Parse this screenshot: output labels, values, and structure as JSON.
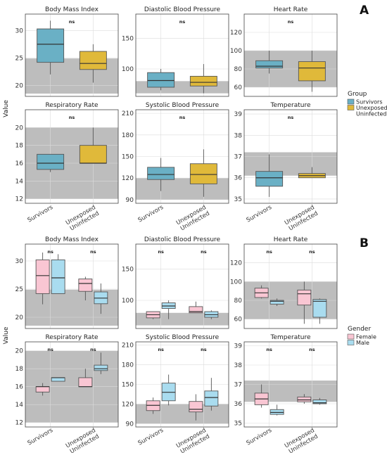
{
  "panels": [
    {
      "letter": "A",
      "legend": {
        "title": "Group",
        "items": [
          {
            "label": "Survivors",
            "color": "#6ab0c5"
          },
          {
            "label": "Unexposed\nUninfected",
            "color": "#e0b93a"
          }
        ]
      }
    },
    {
      "letter": "B",
      "legend": {
        "title": "Gender",
        "items": [
          {
            "label": "Female",
            "color": "#f9c6d3"
          },
          {
            "label": "Male",
            "color": "#a9dcef"
          }
        ]
      }
    }
  ],
  "ylabel": "Value",
  "categories": [
    "Survivors",
    "Unexposed\nUninfected"
  ],
  "chart_data": [
    {
      "type": "boxplot",
      "panel": "A",
      "group_by": "Group",
      "grid": true,
      "shading": "gray band marks normal reference range",
      "subplots": [
        {
          "title": "Body Mass Index",
          "ylim": [
            18,
            33
          ],
          "yticks": [
            20,
            25,
            30
          ],
          "ref_range": [
            18.5,
            24.9
          ],
          "boxes": [
            {
              "category": "Survivors",
              "series": "Survivors",
              "min": 22,
              "q1": 24.2,
              "median": 27.5,
              "q3": 30.3,
              "max": 31.8
            },
            {
              "category": "Unexposed\nUninfected",
              "series": "Unexposed\nUninfected",
              "min": 20.5,
              "q1": 22.9,
              "median": 24,
              "q3": 26.2,
              "max": 27.5
            }
          ],
          "annotations": [
            "ns"
          ]
        },
        {
          "title": "Diastolic Blood Pressure",
          "ylim": [
            55,
            190
          ],
          "yticks": [
            100,
            150
          ],
          "ref_range": [
            60,
            80
          ],
          "boxes": [
            {
              "category": "Survivors",
              "series": "Survivors",
              "min": 65,
              "q1": 70,
              "median": 81,
              "q3": 94,
              "max": 100
            },
            {
              "category": "Unexposed\nUninfected",
              "series": "Unexposed\nUninfected",
              "min": 60,
              "q1": 72,
              "median": 78,
              "q3": 88,
              "max": 108
            }
          ],
          "annotations": [
            "ns"
          ]
        },
        {
          "title": "Heart Rate",
          "ylim": [
            50,
            140
          ],
          "yticks": [
            60,
            80,
            100,
            120
          ],
          "ref_range": [
            60,
            100
          ],
          "boxes": [
            {
              "category": "Survivors",
              "series": "Survivors",
              "min": 75,
              "q1": 81,
              "median": 83,
              "q3": 89,
              "max": 100
            },
            {
              "category": "Unexposed\nUninfected",
              "series": "Unexposed\nUninfected",
              "min": 55,
              "q1": 67,
              "median": 81,
              "q3": 88,
              "max": 100
            }
          ],
          "annotations": [
            "ns"
          ]
        },
        {
          "title": "Respiratory Rate",
          "ylim": [
            11.5,
            22
          ],
          "yticks": [
            12,
            14,
            16,
            18,
            20
          ],
          "ref_range": [
            12,
            20
          ],
          "boxes": [
            {
              "category": "Survivors",
              "series": "Survivors",
              "min": 15,
              "q1": 15.3,
              "median": 16,
              "q3": 17,
              "max": 17
            },
            {
              "category": "Unexposed\nUninfected",
              "series": "Unexposed\nUninfected",
              "min": 16,
              "q1": 16,
              "median": 16,
              "q3": 18,
              "max": 20
            }
          ],
          "annotations": [
            "ns"
          ]
        },
        {
          "title": "Systolic Blood Pressure",
          "ylim": [
            85,
            215
          ],
          "yticks": [
            90,
            120,
            150,
            180,
            210
          ],
          "ref_range": [
            90,
            120
          ],
          "boxes": [
            {
              "category": "Survivors",
              "series": "Survivors",
              "min": 102,
              "q1": 118,
              "median": 125,
              "q3": 135,
              "max": 148
            },
            {
              "category": "Unexposed\nUninfected",
              "series": "Unexposed\nUninfected",
              "min": 94,
              "q1": 112,
              "median": 125,
              "q3": 140,
              "max": 160
            }
          ],
          "annotations": [
            "ns"
          ]
        },
        {
          "title": "Temperature",
          "ylim": [
            34.8,
            39.2
          ],
          "yticks": [
            35,
            36,
            37,
            38,
            39
          ],
          "ref_range": [
            36.1,
            37.2
          ],
          "boxes": [
            {
              "category": "Survivors",
              "series": "Survivors",
              "min": 35.1,
              "q1": 35.6,
              "median": 36,
              "q3": 36.3,
              "max": 37.1
            },
            {
              "category": "Unexposed\nUninfected",
              "series": "Unexposed\nUninfected",
              "min": 36,
              "q1": 36,
              "median": 36.1,
              "q3": 36.2,
              "max": 36.5
            }
          ],
          "annotations": [
            "ns"
          ]
        }
      ]
    },
    {
      "type": "boxplot",
      "panel": "B",
      "group_by": "Gender",
      "grid": true,
      "shading": "gray band marks normal reference range",
      "subplots": [
        {
          "title": "Body Mass Index",
          "ylim": [
            18,
            33
          ],
          "yticks": [
            20,
            25,
            30
          ],
          "ref_range": [
            18.5,
            24.9
          ],
          "boxes": [
            {
              "category": "Survivors",
              "series": "Female",
              "min": 22.3,
              "q1": 24.2,
              "median": 27.4,
              "q3": 30.2,
              "max": 31.5
            },
            {
              "category": "Survivors",
              "series": "Male",
              "min": 24.2,
              "q1": 24.2,
              "median": 27,
              "q3": 30.2,
              "max": 31.2
            },
            {
              "category": "Unexposed\nUninfected",
              "series": "Female",
              "min": 23,
              "q1": 24.6,
              "median": 26,
              "q3": 26.8,
              "max": 27.2
            },
            {
              "category": "Unexposed\nUninfected",
              "series": "Male",
              "min": 20.6,
              "q1": 22.4,
              "median": 23.4,
              "q3": 24.5,
              "max": 26
            }
          ],
          "annotations": [
            "ns",
            "ns"
          ]
        },
        {
          "title": "Diastolic Blood Pressure",
          "ylim": [
            55,
            190
          ],
          "yticks": [
            100,
            150
          ],
          "ref_range": [
            60,
            80
          ],
          "boxes": [
            {
              "category": "Survivors",
              "series": "Female",
              "min": 70,
              "q1": 72,
              "median": 77,
              "q3": 82,
              "max": 82
            },
            {
              "category": "Survivors",
              "series": "Male",
              "min": 70,
              "q1": 87,
              "median": 91,
              "q3": 96,
              "max": 100
            },
            {
              "category": "Unexposed\nUninfected",
              "series": "Female",
              "min": 80,
              "q1": 80,
              "median": 82,
              "q3": 90,
              "max": 98
            },
            {
              "category": "Unexposed\nUninfected",
              "series": "Male",
              "min": 70,
              "q1": 73,
              "median": 77,
              "q3": 82,
              "max": 84
            }
          ],
          "annotations": [
            "ns",
            "ns"
          ]
        },
        {
          "title": "Heart Rate",
          "ylim": [
            50,
            140
          ],
          "yticks": [
            60,
            80,
            100,
            120
          ],
          "ref_range": [
            60,
            100
          ],
          "boxes": [
            {
              "category": "Survivors",
              "series": "Female",
              "min": 82,
              "q1": 83,
              "median": 88,
              "q3": 93,
              "max": 96
            },
            {
              "category": "Survivors",
              "series": "Male",
              "min": 74,
              "q1": 76,
              "median": 79,
              "q3": 80,
              "max": 82
            },
            {
              "category": "Unexposed\nUninfected",
              "series": "Female",
              "min": 55,
              "q1": 75,
              "median": 87,
              "q3": 91,
              "max": 100
            },
            {
              "category": "Unexposed\nUninfected",
              "series": "Male",
              "min": 55,
              "q1": 62,
              "median": 79,
              "q3": 81,
              "max": 82
            }
          ],
          "annotations": [
            "ns",
            "ns"
          ]
        },
        {
          "title": "Respiratory Rate",
          "ylim": [
            11.5,
            21
          ],
          "yticks": [
            12,
            14,
            16,
            18,
            20
          ],
          "ref_range": [
            12,
            20
          ],
          "boxes": [
            {
              "category": "Survivors",
              "series": "Female",
              "min": 15,
              "q1": 15.4,
              "median": 16,
              "q3": 16,
              "max": 16.4
            },
            {
              "category": "Survivors",
              "series": "Male",
              "min": 16.6,
              "q1": 16.6,
              "median": 17,
              "q3": 17,
              "max": 17
            },
            {
              "category": "Unexposed\nUninfected",
              "series": "Female",
              "min": 16,
              "q1": 16,
              "median": 16,
              "q3": 17,
              "max": 18
            },
            {
              "category": "Unexposed\nUninfected",
              "series": "Male",
              "min": 17.4,
              "q1": 17.8,
              "median": 18,
              "q3": 18.4,
              "max": 19.8
            }
          ],
          "annotations": [
            "ns",
            "ns"
          ]
        },
        {
          "title": "Systolic Blood Pressure",
          "ylim": [
            85,
            215
          ],
          "yticks": [
            90,
            120,
            150,
            180,
            210
          ],
          "ref_range": [
            90,
            120
          ],
          "boxes": [
            {
              "category": "Survivors",
              "series": "Female",
              "min": 105,
              "q1": 110,
              "median": 118,
              "q3": 125,
              "max": 130
            },
            {
              "category": "Survivors",
              "series": "Male",
              "min": 118,
              "q1": 125,
              "median": 138,
              "q3": 152,
              "max": 165
            },
            {
              "category": "Unexposed\nUninfected",
              "series": "Female",
              "min": 95,
              "q1": 108,
              "median": 112,
              "q3": 124,
              "max": 135
            },
            {
              "category": "Unexposed\nUninfected",
              "series": "Male",
              "min": 110,
              "q1": 117,
              "median": 130,
              "q3": 140,
              "max": 160
            }
          ],
          "annotations": [
            "ns",
            "ns"
          ]
        },
        {
          "title": "Temperature",
          "ylim": [
            34.8,
            39.2
          ],
          "yticks": [
            35,
            36,
            37,
            38,
            39
          ],
          "ref_range": [
            36.1,
            37.2
          ],
          "boxes": [
            {
              "category": "Survivors",
              "series": "Female",
              "min": 35.8,
              "q1": 35.95,
              "median": 36.25,
              "q3": 36.55,
              "max": 37
            },
            {
              "category": "Survivors",
              "series": "Male",
              "min": 35.4,
              "q1": 35.45,
              "median": 35.55,
              "q3": 35.7,
              "max": 35.95
            },
            {
              "category": "Unexposed\nUninfected",
              "series": "Female",
              "min": 36,
              "q1": 36.1,
              "median": 36.2,
              "q3": 36.35,
              "max": 36.5
            },
            {
              "category": "Unexposed\nUninfected",
              "series": "Male",
              "min": 35.95,
              "q1": 36,
              "median": 36.05,
              "q3": 36.2,
              "max": 36.3
            }
          ],
          "annotations": [
            "ns",
            "ns"
          ]
        }
      ]
    }
  ]
}
